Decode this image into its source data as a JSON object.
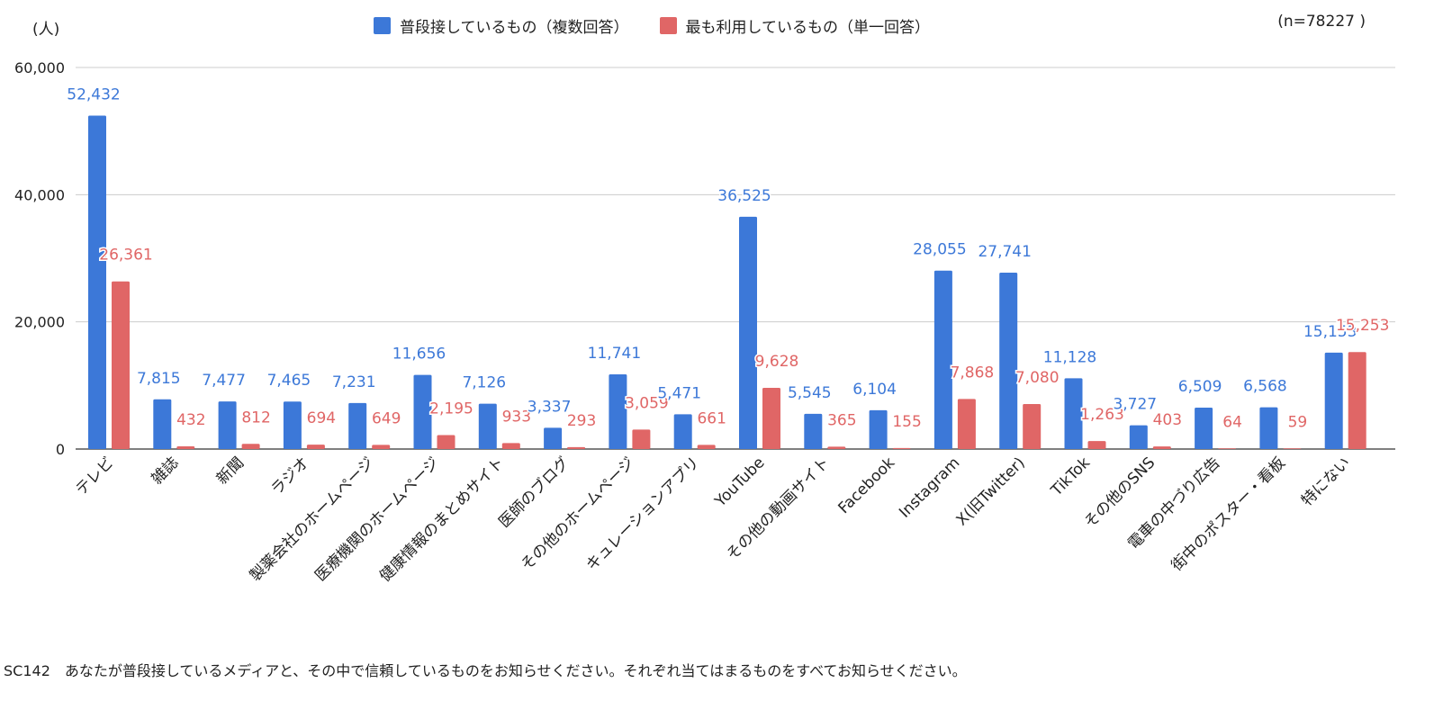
{
  "chart_data": {
    "type": "bar",
    "unit_label": "(人)",
    "sample_size": "(n=78227 )",
    "ylim": [
      0,
      60000
    ],
    "y_ticks": [
      "0",
      "20,000",
      "40,000",
      "60,000"
    ],
    "y_tick_values": [
      0,
      20000,
      40000,
      60000
    ],
    "grid": true,
    "legend_position": "top-center",
    "categories": [
      "テレビ",
      "雑誌",
      "新聞",
      "ラジオ",
      "製薬会社のホームページ",
      "医療機関のホームページ",
      "健康情報のまとめサイト",
      "医師のブログ",
      "その他のホームページ",
      "キュレーションアプリ",
      "YouTube",
      "その他の動画サイト",
      "Facebook",
      "Instagram",
      "X(旧Twitter)",
      "TikTok",
      "その他のSNS",
      "電車の中づり広告",
      "街中のポスター・看板",
      "特にない"
    ],
    "series": [
      {
        "name": "普段接しているもの（複数回答）",
        "color": "#3c78d8",
        "values": [
          52432,
          7815,
          7477,
          7465,
          7231,
          11656,
          7126,
          3337,
          11741,
          5471,
          36525,
          5545,
          6104,
          28055,
          27741,
          11128,
          3727,
          6509,
          6568,
          15153
        ],
        "labels": [
          "52,432",
          "7,815",
          "7,477",
          "7,465",
          "7,231",
          "11,656",
          "7,126",
          "3,337",
          "11,741",
          "5,471",
          "36,525",
          "5,545",
          "6,104",
          "28,055",
          "27,741",
          "11,128",
          "3,727",
          "6,509",
          "6,568",
          "15,153"
        ]
      },
      {
        "name": "最も利用しているもの（単一回答）",
        "color": "#e06666",
        "values": [
          26361,
          432,
          812,
          694,
          649,
          2195,
          933,
          293,
          3059,
          661,
          9628,
          365,
          155,
          7868,
          7080,
          1263,
          403,
          64,
          59,
          15253
        ],
        "labels": [
          "26,361",
          "432",
          "812",
          "694",
          "649",
          "2,195",
          "933",
          "293",
          "3,059",
          "661",
          "9,628",
          "365",
          "155",
          "7,868",
          "7,080",
          "1,263",
          "403",
          "64",
          "59",
          "15,253"
        ]
      }
    ]
  },
  "footer": {
    "question": "SC142　あなたが普段接しているメディアと、その中で信頼しているものをお知らせください。それぞれ当てはまるものをすべてお知らせください。"
  }
}
